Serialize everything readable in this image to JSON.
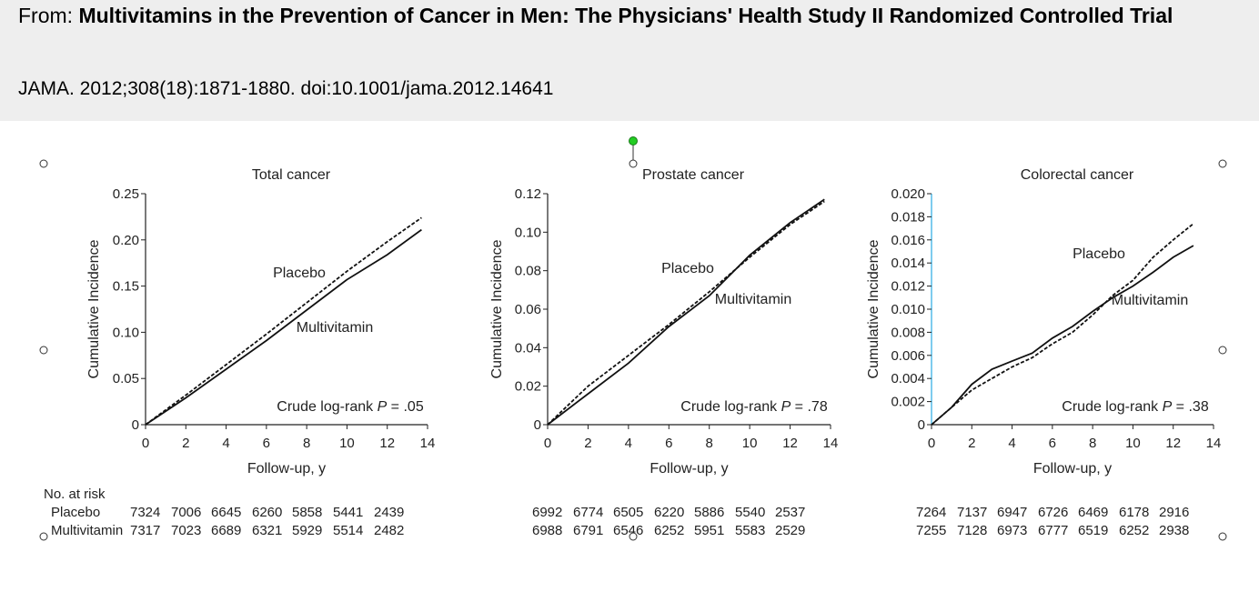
{
  "header": {
    "from_label": "From:",
    "title": "Multivitamins in the Prevention of Cancer in Men:  The Physicians' Health Study II Randomized Controlled Trial",
    "citation": "JAMA. 2012;308(18):1871-1880. doi:10.1001/jama.2012.14641"
  },
  "colors": {
    "header_bg": "#eeeeee",
    "axis": "#222222",
    "selection_axis": "#29abe2",
    "rotate_handle": "#22cc22"
  },
  "at_risk": {
    "title": "No. at risk",
    "row_labels": [
      "Placebo",
      "Multivitamin"
    ]
  },
  "chart_data": [
    {
      "type": "line",
      "title": "Total cancer",
      "xlabel": "Follow-up, y",
      "ylabel": "Cumulative Incidence",
      "xlim": [
        0,
        14
      ],
      "ylim": [
        0,
        0.25
      ],
      "xticks": [
        0,
        2,
        4,
        6,
        8,
        10,
        12,
        14
      ],
      "xtick_labels": [
        "0",
        "2",
        "4",
        "6",
        "8",
        "10",
        "12",
        "14"
      ],
      "yticks": [
        0,
        0.05,
        0.1,
        0.15,
        0.2,
        0.25
      ],
      "ytick_labels": [
        "0",
        "0.05",
        "0.10",
        "0.15",
        "0.20",
        "0.25"
      ],
      "annotation": "Crude log-rank P = .05",
      "series": [
        {
          "name": "Placebo",
          "style": "dashed",
          "x": [
            0,
            2,
            4,
            6,
            8,
            10,
            12,
            13.7
          ],
          "y": [
            0,
            0.032,
            0.065,
            0.098,
            0.132,
            0.166,
            0.198,
            0.224
          ]
        },
        {
          "name": "Multivitamin",
          "style": "solid",
          "x": [
            0,
            2,
            4,
            6,
            8,
            10,
            12,
            13.7
          ],
          "y": [
            0,
            0.029,
            0.06,
            0.091,
            0.124,
            0.157,
            0.184,
            0.211
          ]
        }
      ],
      "at_risk": {
        "Placebo": [
          "7324",
          "7006",
          "6645",
          "6260",
          "5858",
          "5441",
          "2439"
        ],
        "Multivitamin": [
          "7317",
          "7023",
          "6689",
          "6321",
          "5929",
          "5514",
          "2482"
        ]
      }
    },
    {
      "type": "line",
      "title": "Prostate cancer",
      "xlabel": "Follow-up, y",
      "ylabel": "Cumulative Incidence",
      "xlim": [
        0,
        14
      ],
      "ylim": [
        0,
        0.12
      ],
      "xticks": [
        0,
        2,
        4,
        6,
        8,
        10,
        12,
        14
      ],
      "xtick_labels": [
        "0",
        "2",
        "4",
        "6",
        "8",
        "10",
        "12",
        "14"
      ],
      "yticks": [
        0,
        0.02,
        0.04,
        0.06,
        0.08,
        0.1,
        0.12
      ],
      "ytick_labels": [
        "0",
        "0.02",
        "0.04",
        "0.06",
        "0.08",
        "0.10",
        "0.12"
      ],
      "annotation": "Crude log-rank P = .78",
      "series": [
        {
          "name": "Placebo",
          "style": "dashed",
          "x": [
            0,
            2,
            4,
            6,
            8,
            10,
            12,
            13.7
          ],
          "y": [
            0,
            0.02,
            0.036,
            0.052,
            0.069,
            0.087,
            0.104,
            0.116
          ]
        },
        {
          "name": "Multivitamin",
          "style": "solid",
          "x": [
            0,
            2,
            4,
            6,
            8,
            10,
            12,
            13.7
          ],
          "y": [
            0,
            0.016,
            0.032,
            0.051,
            0.067,
            0.088,
            0.105,
            0.117
          ]
        }
      ],
      "at_risk": {
        "Placebo": [
          "6992",
          "6774",
          "6505",
          "6220",
          "5886",
          "5540",
          "2537"
        ],
        "Multivitamin": [
          "6988",
          "6791",
          "6546",
          "6252",
          "5951",
          "5583",
          "2529"
        ]
      }
    },
    {
      "type": "line",
      "title": "Colorectal cancer",
      "xlabel": "Follow-up, y",
      "ylabel": "Cumulative Incidence",
      "xlim": [
        0,
        14
      ],
      "ylim": [
        0,
        0.02
      ],
      "xticks": [
        0,
        2,
        4,
        6,
        8,
        10,
        12,
        14
      ],
      "xtick_labels": [
        "0",
        "2",
        "4",
        "6",
        "8",
        "10",
        "12",
        "14"
      ],
      "yticks": [
        0,
        0.002,
        0.004,
        0.006,
        0.008,
        0.01,
        0.012,
        0.014,
        0.016,
        0.018,
        0.02
      ],
      "ytick_labels": [
        "0",
        "0.002",
        "0.004",
        "0.006",
        "0.008",
        "0.010",
        "0.012",
        "0.014",
        "0.016",
        "0.018",
        "0.020"
      ],
      "annotation": "Crude log-rank P = .38",
      "series": [
        {
          "name": "Placebo",
          "style": "dashed",
          "x": [
            0,
            1,
            2,
            3,
            4,
            5,
            6,
            7,
            8,
            9,
            10,
            11,
            12,
            13
          ],
          "y": [
            0,
            0.0015,
            0.003,
            0.004,
            0.005,
            0.0058,
            0.007,
            0.008,
            0.0095,
            0.0112,
            0.0125,
            0.0145,
            0.016,
            0.0174
          ]
        },
        {
          "name": "Multivitamin",
          "style": "solid",
          "x": [
            0,
            1,
            2,
            3,
            4,
            5,
            6,
            7,
            8,
            9,
            10,
            11,
            12,
            13
          ],
          "y": [
            0,
            0.0015,
            0.0035,
            0.0048,
            0.0055,
            0.0062,
            0.0075,
            0.0085,
            0.0098,
            0.011,
            0.012,
            0.0132,
            0.0145,
            0.0155
          ]
        }
      ],
      "at_risk": {
        "Placebo": [
          "7264",
          "7137",
          "6947",
          "6726",
          "6469",
          "6178",
          "2916"
        ],
        "Multivitamin": [
          "7255",
          "7128",
          "6973",
          "6777",
          "6519",
          "6252",
          "2938"
        ]
      }
    }
  ]
}
